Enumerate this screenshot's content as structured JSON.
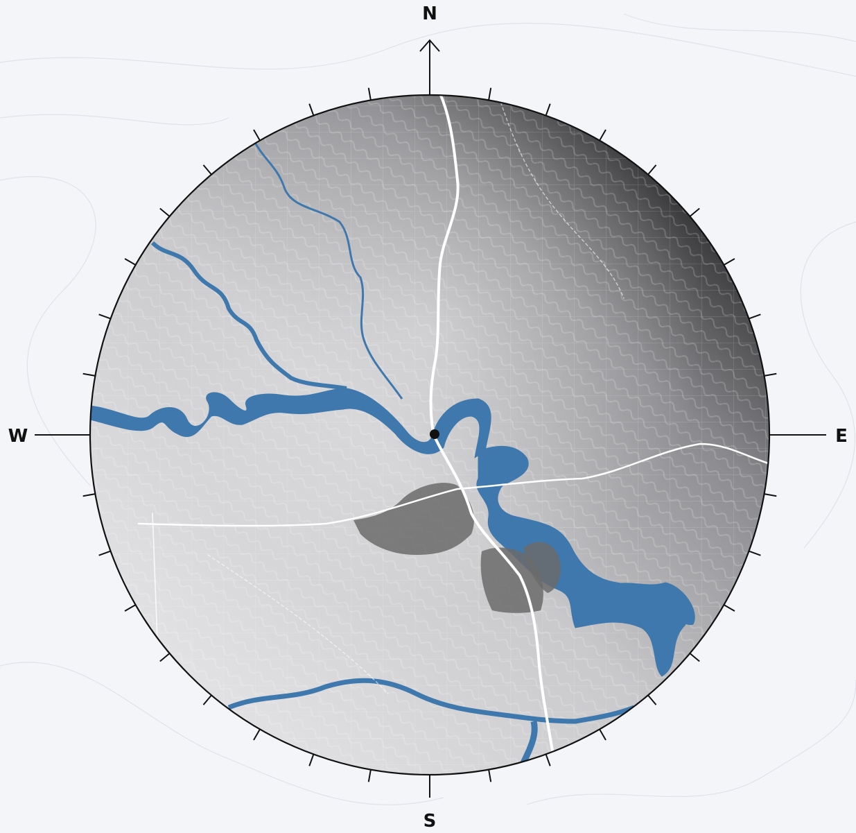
{
  "map": {
    "compass": {
      "north": "N",
      "south": "S",
      "east": "E",
      "west": "W"
    },
    "colors": {
      "background": "#f4f5f8",
      "water": "#3e78ad",
      "road": "#ffffff",
      "urban": "#6b6b6b",
      "relief_dark": "#2a2a2a",
      "relief_light": "#e8e8ea",
      "ring": "#111111"
    },
    "icons": [
      "compass-rose",
      "location-marker"
    ]
  }
}
